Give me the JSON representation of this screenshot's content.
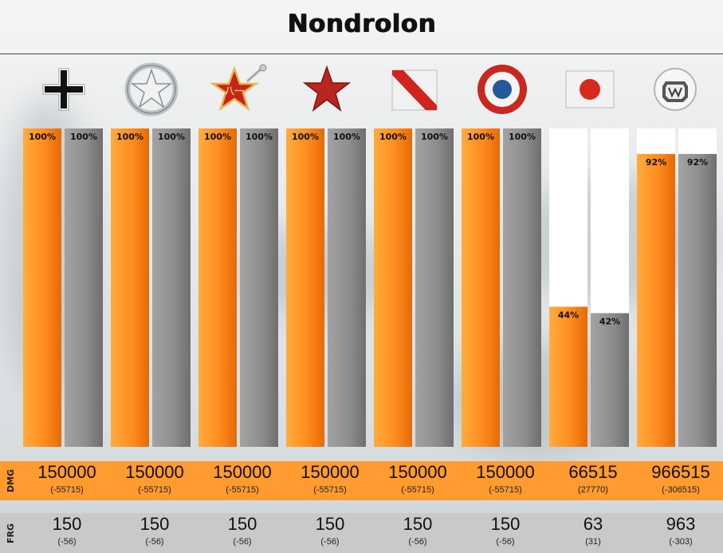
{
  "title": "Nondrolon",
  "colors": {
    "primary_bar": "#ff8a1a",
    "secondary_bar": "#8f8f8f",
    "dmg_row": "#ff9b2f",
    "frg_row": "#c9c9c9",
    "track": "#ffffff"
  },
  "chart_data": {
    "type": "bar",
    "categories": [
      "germany-flag",
      "usa-flag",
      "china-flag",
      "ussr-flag",
      "uk-flag",
      "france-flag",
      "japan-flag",
      "world-of-tanks-logo"
    ],
    "series": [
      {
        "values": [
          100,
          100,
          100,
          100,
          100,
          100,
          44,
          92
        ],
        "color": "#ff8a1a"
      },
      {
        "values": [
          100,
          100,
          100,
          100,
          100,
          100,
          42,
          92
        ],
        "color": "#8f8f8f"
      }
    ],
    "unit": "%",
    "ylim": [
      0,
      100
    ],
    "grid": false
  },
  "dmg": {
    "label": "DMG",
    "values": [
      "150000",
      "150000",
      "150000",
      "150000",
      "150000",
      "150000",
      "66515",
      "966515"
    ],
    "deltas": [
      "(-55715)",
      "(-55715)",
      "(-55715)",
      "(-55715)",
      "(-55715)",
      "(-55715)",
      "(27770)",
      "(-306515)"
    ]
  },
  "frg": {
    "label": "FRG",
    "values": [
      "150",
      "150",
      "150",
      "150",
      "150",
      "150",
      "63",
      "963"
    ],
    "deltas": [
      "(-56)",
      "(-56)",
      "(-56)",
      "(-56)",
      "(-56)",
      "(-56)",
      "(31)",
      "(-303)"
    ]
  }
}
